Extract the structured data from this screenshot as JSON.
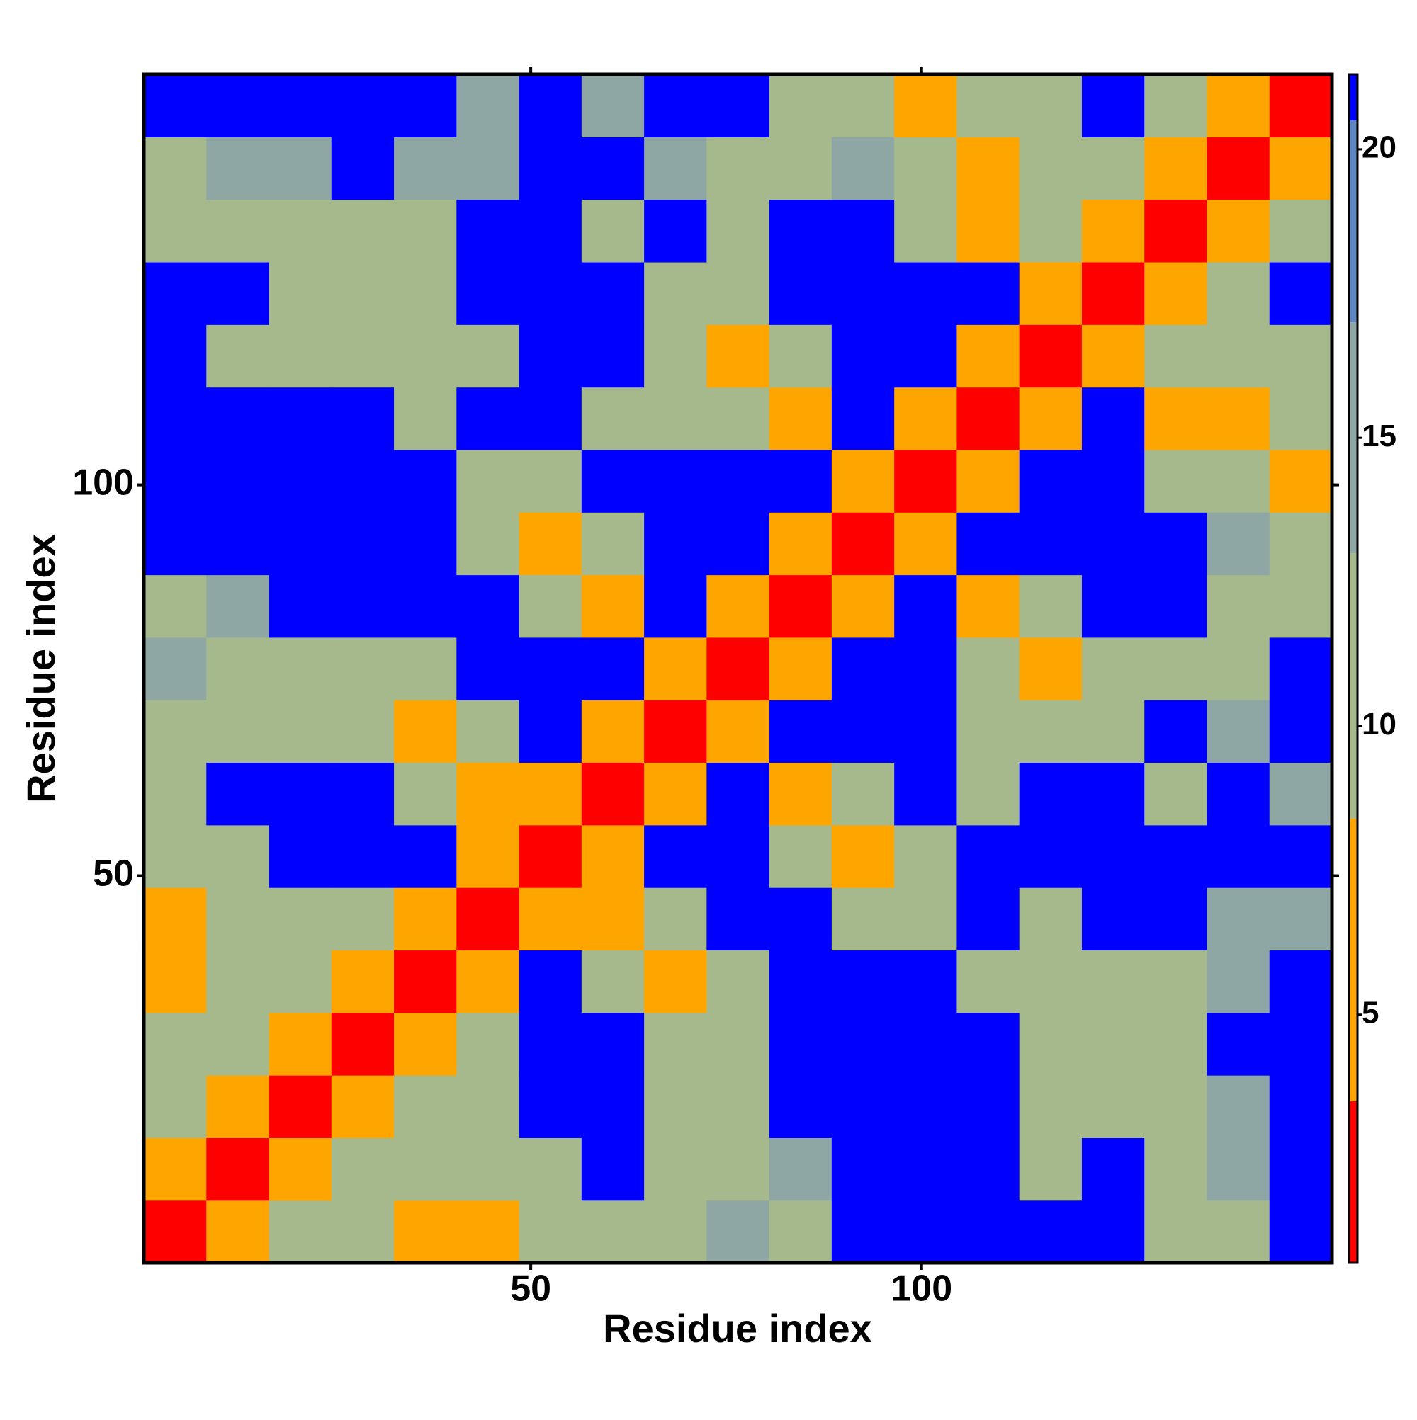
{
  "chart_data": {
    "type": "heatmap",
    "x_label": "Residue index",
    "y_label": "Residue index",
    "x": [
      4.5,
      12.5,
      20.5,
      28.5,
      36.5,
      44.5,
      52.5,
      60.5,
      68.5,
      76.5,
      84.5,
      92.5,
      100.5,
      108.5,
      116.5,
      124.5,
      132.5,
      140.5,
      148.5
    ],
    "y": [
      4.5,
      12.5,
      20.5,
      28.5,
      36.5,
      44.5,
      52.5,
      60.5,
      68.5,
      76.5,
      84.5,
      92.5,
      100.5,
      108.5,
      116.5,
      124.5,
      132.5,
      140.5,
      148.5
    ],
    "z": [
      [
        2,
        8,
        11,
        12,
        8,
        7,
        13,
        13,
        12,
        14,
        13,
        21,
        21,
        21,
        21,
        21,
        13,
        13,
        21
      ],
      [
        8,
        2,
        8,
        11,
        11,
        9,
        13,
        21,
        13,
        13,
        14,
        21,
        21,
        21,
        13,
        21,
        13,
        14,
        21
      ],
      [
        11,
        8,
        2,
        8,
        11,
        12,
        21,
        21,
        13,
        13,
        21,
        21,
        21,
        21,
        13,
        12,
        13,
        14,
        21
      ],
      [
        12,
        11,
        8,
        2,
        8,
        12,
        21,
        21,
        12,
        13,
        21,
        21,
        21,
        21,
        13,
        13,
        13,
        21,
        21
      ],
      [
        8,
        11,
        11,
        8,
        2,
        8,
        21,
        12,
        7,
        12,
        21,
        21,
        21,
        12,
        13,
        13,
        13,
        14,
        21
      ],
      [
        7,
        9,
        12,
        12,
        8,
        2,
        8,
        7,
        12,
        21,
        21,
        12,
        12,
        21,
        13,
        21,
        21,
        14,
        14
      ],
      [
        13,
        13,
        21,
        21,
        21,
        8,
        2,
        8,
        21,
        21,
        12,
        7,
        12,
        21,
        21,
        21,
        21,
        21,
        21
      ],
      [
        13,
        21,
        21,
        21,
        12,
        7,
        8,
        2,
        8,
        21,
        7,
        12,
        21,
        12,
        21,
        21,
        13,
        21,
        14
      ],
      [
        12,
        13,
        13,
        12,
        7,
        12,
        21,
        8,
        2,
        8,
        21,
        21,
        21,
        12,
        12,
        13,
        21,
        14,
        21
      ],
      [
        14,
        13,
        13,
        13,
        12,
        21,
        21,
        21,
        8,
        2,
        8,
        21,
        21,
        12,
        7,
        12,
        13,
        13,
        21
      ],
      [
        13,
        14,
        21,
        21,
        21,
        21,
        12,
        7,
        21,
        8,
        2,
        8,
        21,
        7,
        12,
        21,
        21,
        13,
        13
      ],
      [
        21,
        21,
        21,
        21,
        21,
        12,
        7,
        12,
        21,
        21,
        8,
        2,
        8,
        21,
        21,
        21,
        21,
        14,
        13
      ],
      [
        21,
        21,
        21,
        21,
        21,
        12,
        12,
        21,
        21,
        21,
        21,
        8,
        2,
        8,
        21,
        21,
        13,
        12,
        7
      ],
      [
        21,
        21,
        21,
        21,
        12,
        21,
        21,
        12,
        12,
        12,
        7,
        21,
        8,
        2,
        8,
        21,
        8,
        7,
        12
      ],
      [
        21,
        13,
        13,
        13,
        13,
        13,
        21,
        21,
        12,
        7,
        12,
        21,
        21,
        8,
        2,
        7,
        13,
        12,
        12
      ],
      [
        21,
        21,
        12,
        13,
        13,
        21,
        21,
        21,
        13,
        12,
        21,
        21,
        21,
        21,
        7,
        2,
        7,
        13,
        21
      ],
      [
        13,
        13,
        13,
        13,
        13,
        21,
        21,
        13,
        21,
        13,
        21,
        21,
        13,
        8,
        13,
        7,
        2,
        7,
        13
      ],
      [
        13,
        14,
        14,
        21,
        14,
        14,
        21,
        21,
        14,
        13,
        13,
        14,
        12,
        7,
        12,
        13,
        7,
        2,
        7
      ],
      [
        21,
        21,
        21,
        21,
        21,
        14,
        21,
        14,
        21,
        21,
        13,
        13,
        7,
        12,
        12,
        21,
        13,
        7,
        2
      ]
    ],
    "xlim": [
      0.5,
      152.5
    ],
    "ylim": [
      0.5,
      152.5
    ],
    "xticks": [
      50,
      100
    ],
    "yticks": [
      50,
      100
    ],
    "colorscale": [
      {
        "upto": 3.5,
        "color": "#ff0000"
      },
      {
        "upto": 8.4,
        "color": "#ffa500"
      },
      {
        "upto": 13,
        "color": "#a6b98c"
      },
      {
        "upto": 17,
        "color": "#8ea7a4"
      },
      {
        "upto": 20.5,
        "color": "#5d86c2"
      },
      {
        "upto": 21.3,
        "color": "#0000ff"
      }
    ],
    "clim": [
      0.7,
      21.3
    ],
    "cticks": [
      5,
      10,
      15,
      20
    ]
  }
}
